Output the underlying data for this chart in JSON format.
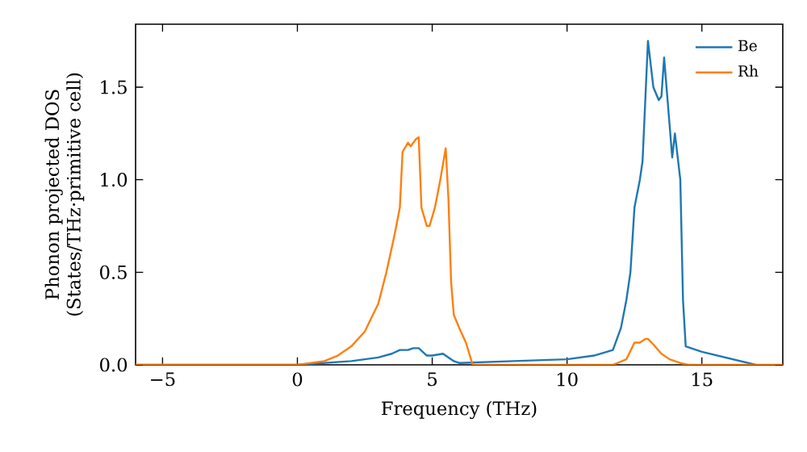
{
  "chart_data": {
    "type": "line",
    "xlabel": "Frequency (THz)",
    "ylabel": "Phonon projected DOS\n(States/THz·primitive cell)",
    "xlim": [
      -6,
      18
    ],
    "ylim": [
      0,
      1.84
    ],
    "xticks": [
      {
        "value": -5,
        "label": "−5"
      },
      0,
      5,
      10,
      15
    ],
    "yticks": [
      {
        "value": 0,
        "label": "0.0"
      },
      0.5,
      {
        "value": 1,
        "label": "1.0"
      },
      1.5
    ],
    "legend": "top right",
    "grid": false,
    "series": [
      {
        "name": "Be",
        "color": "#1f77b4",
        "x": [
          -6,
          0,
          1,
          2,
          3,
          3.5,
          3.8,
          4.1,
          4.3,
          4.5,
          4.8,
          5.0,
          5.4,
          5.8,
          6,
          8,
          10,
          11,
          11.7,
          12.0,
          12.2,
          12.35,
          12.5,
          12.7,
          12.8,
          13.0,
          13.2,
          13.4,
          13.5,
          13.6,
          13.8,
          13.9,
          14.0,
          14.2,
          14.3,
          14.4,
          15,
          17
        ],
        "values": [
          0,
          0,
          0.01,
          0.02,
          0.04,
          0.06,
          0.08,
          0.08,
          0.09,
          0.09,
          0.05,
          0.05,
          0.06,
          0.02,
          0.01,
          0.02,
          0.03,
          0.05,
          0.08,
          0.2,
          0.35,
          0.5,
          0.85,
          1.0,
          1.1,
          1.75,
          1.5,
          1.43,
          1.45,
          1.66,
          1.3,
          1.12,
          1.25,
          1.0,
          0.35,
          0.1,
          0.07,
          0.0
        ]
      },
      {
        "name": "Rh",
        "color": "#ff7f0e",
        "x": [
          -6,
          0,
          0.5,
          1,
          1.5,
          2,
          2.5,
          3,
          3.3,
          3.6,
          3.8,
          3.9,
          4.1,
          4.2,
          4.4,
          4.5,
          4.6,
          4.8,
          4.9,
          5.1,
          5.3,
          5.5,
          5.6,
          5.7,
          5.8,
          6.0,
          6.25,
          6.5,
          11.7,
          12.2,
          12.3,
          12.5,
          12.7,
          12.9,
          13.0,
          13.2,
          13.5,
          13.8,
          14.2,
          14.5,
          18
        ],
        "values": [
          0,
          0,
          0.01,
          0.02,
          0.05,
          0.1,
          0.18,
          0.33,
          0.5,
          0.7,
          0.85,
          1.15,
          1.2,
          1.18,
          1.22,
          1.23,
          0.85,
          0.75,
          0.75,
          0.85,
          1.0,
          1.17,
          0.9,
          0.45,
          0.27,
          0.2,
          0.12,
          0,
          0,
          0.03,
          0.06,
          0.12,
          0.12,
          0.14,
          0.14,
          0.11,
          0.06,
          0.03,
          0.01,
          0,
          0
        ]
      }
    ]
  }
}
